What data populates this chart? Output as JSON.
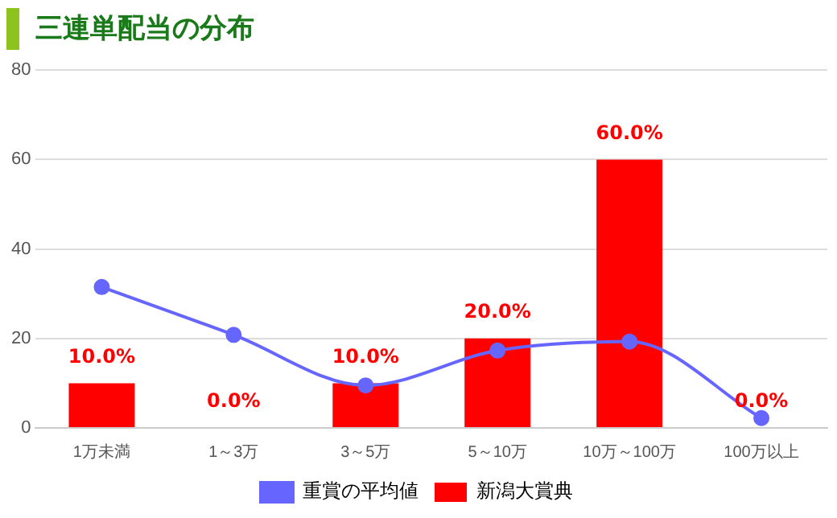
{
  "chart_data": {
    "type": "bar",
    "title": "三連単配当の分布",
    "categories": [
      "1万未満",
      "1～3万",
      "3～5万",
      "5～10万",
      "10万～100万",
      "100万以上"
    ],
    "series": [
      {
        "name": "重賞の平均値",
        "type": "line",
        "color": "#6666ff",
        "marker": "circle",
        "values": [
          31.5,
          20.8,
          9.5,
          17.3,
          19.3,
          2.2
        ]
      },
      {
        "name": "新潟大賞典",
        "color": "#ff0000",
        "values": [
          10,
          0,
          10,
          20,
          60,
          0
        ],
        "value_labels": [
          "10.0%",
          "0.0%",
          "10.0%",
          "20.0%",
          "60.0%",
          "0.0%"
        ]
      }
    ],
    "ylim": [
      0,
      80
    ],
    "yticks": [
      0,
      20,
      40,
      60,
      80
    ],
    "grid": "y",
    "legend": "bottom"
  }
}
